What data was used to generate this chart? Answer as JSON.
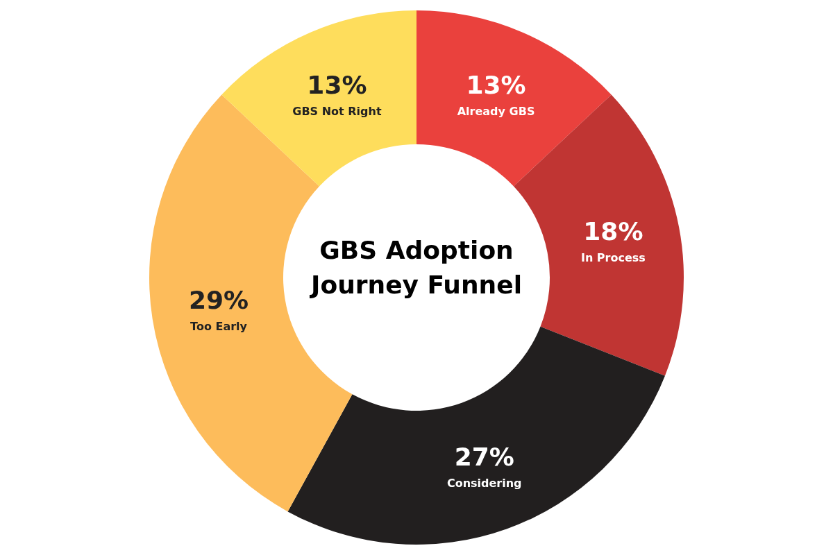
{
  "chart_data": {
    "type": "donut",
    "title": "GBS Adoption Journey Funnel",
    "categories": [
      "Already GBS",
      "In Process",
      "Considering",
      "Too Early",
      "GBS Not Right"
    ],
    "values": [
      13,
      18,
      27,
      29,
      13
    ],
    "value_labels": [
      "13%",
      "18%",
      "27%",
      "29%",
      "13%"
    ],
    "colors": [
      "#ea413d",
      "#c03533",
      "#221f1f",
      "#fdbc5b",
      "#fedd5c"
    ]
  }
}
